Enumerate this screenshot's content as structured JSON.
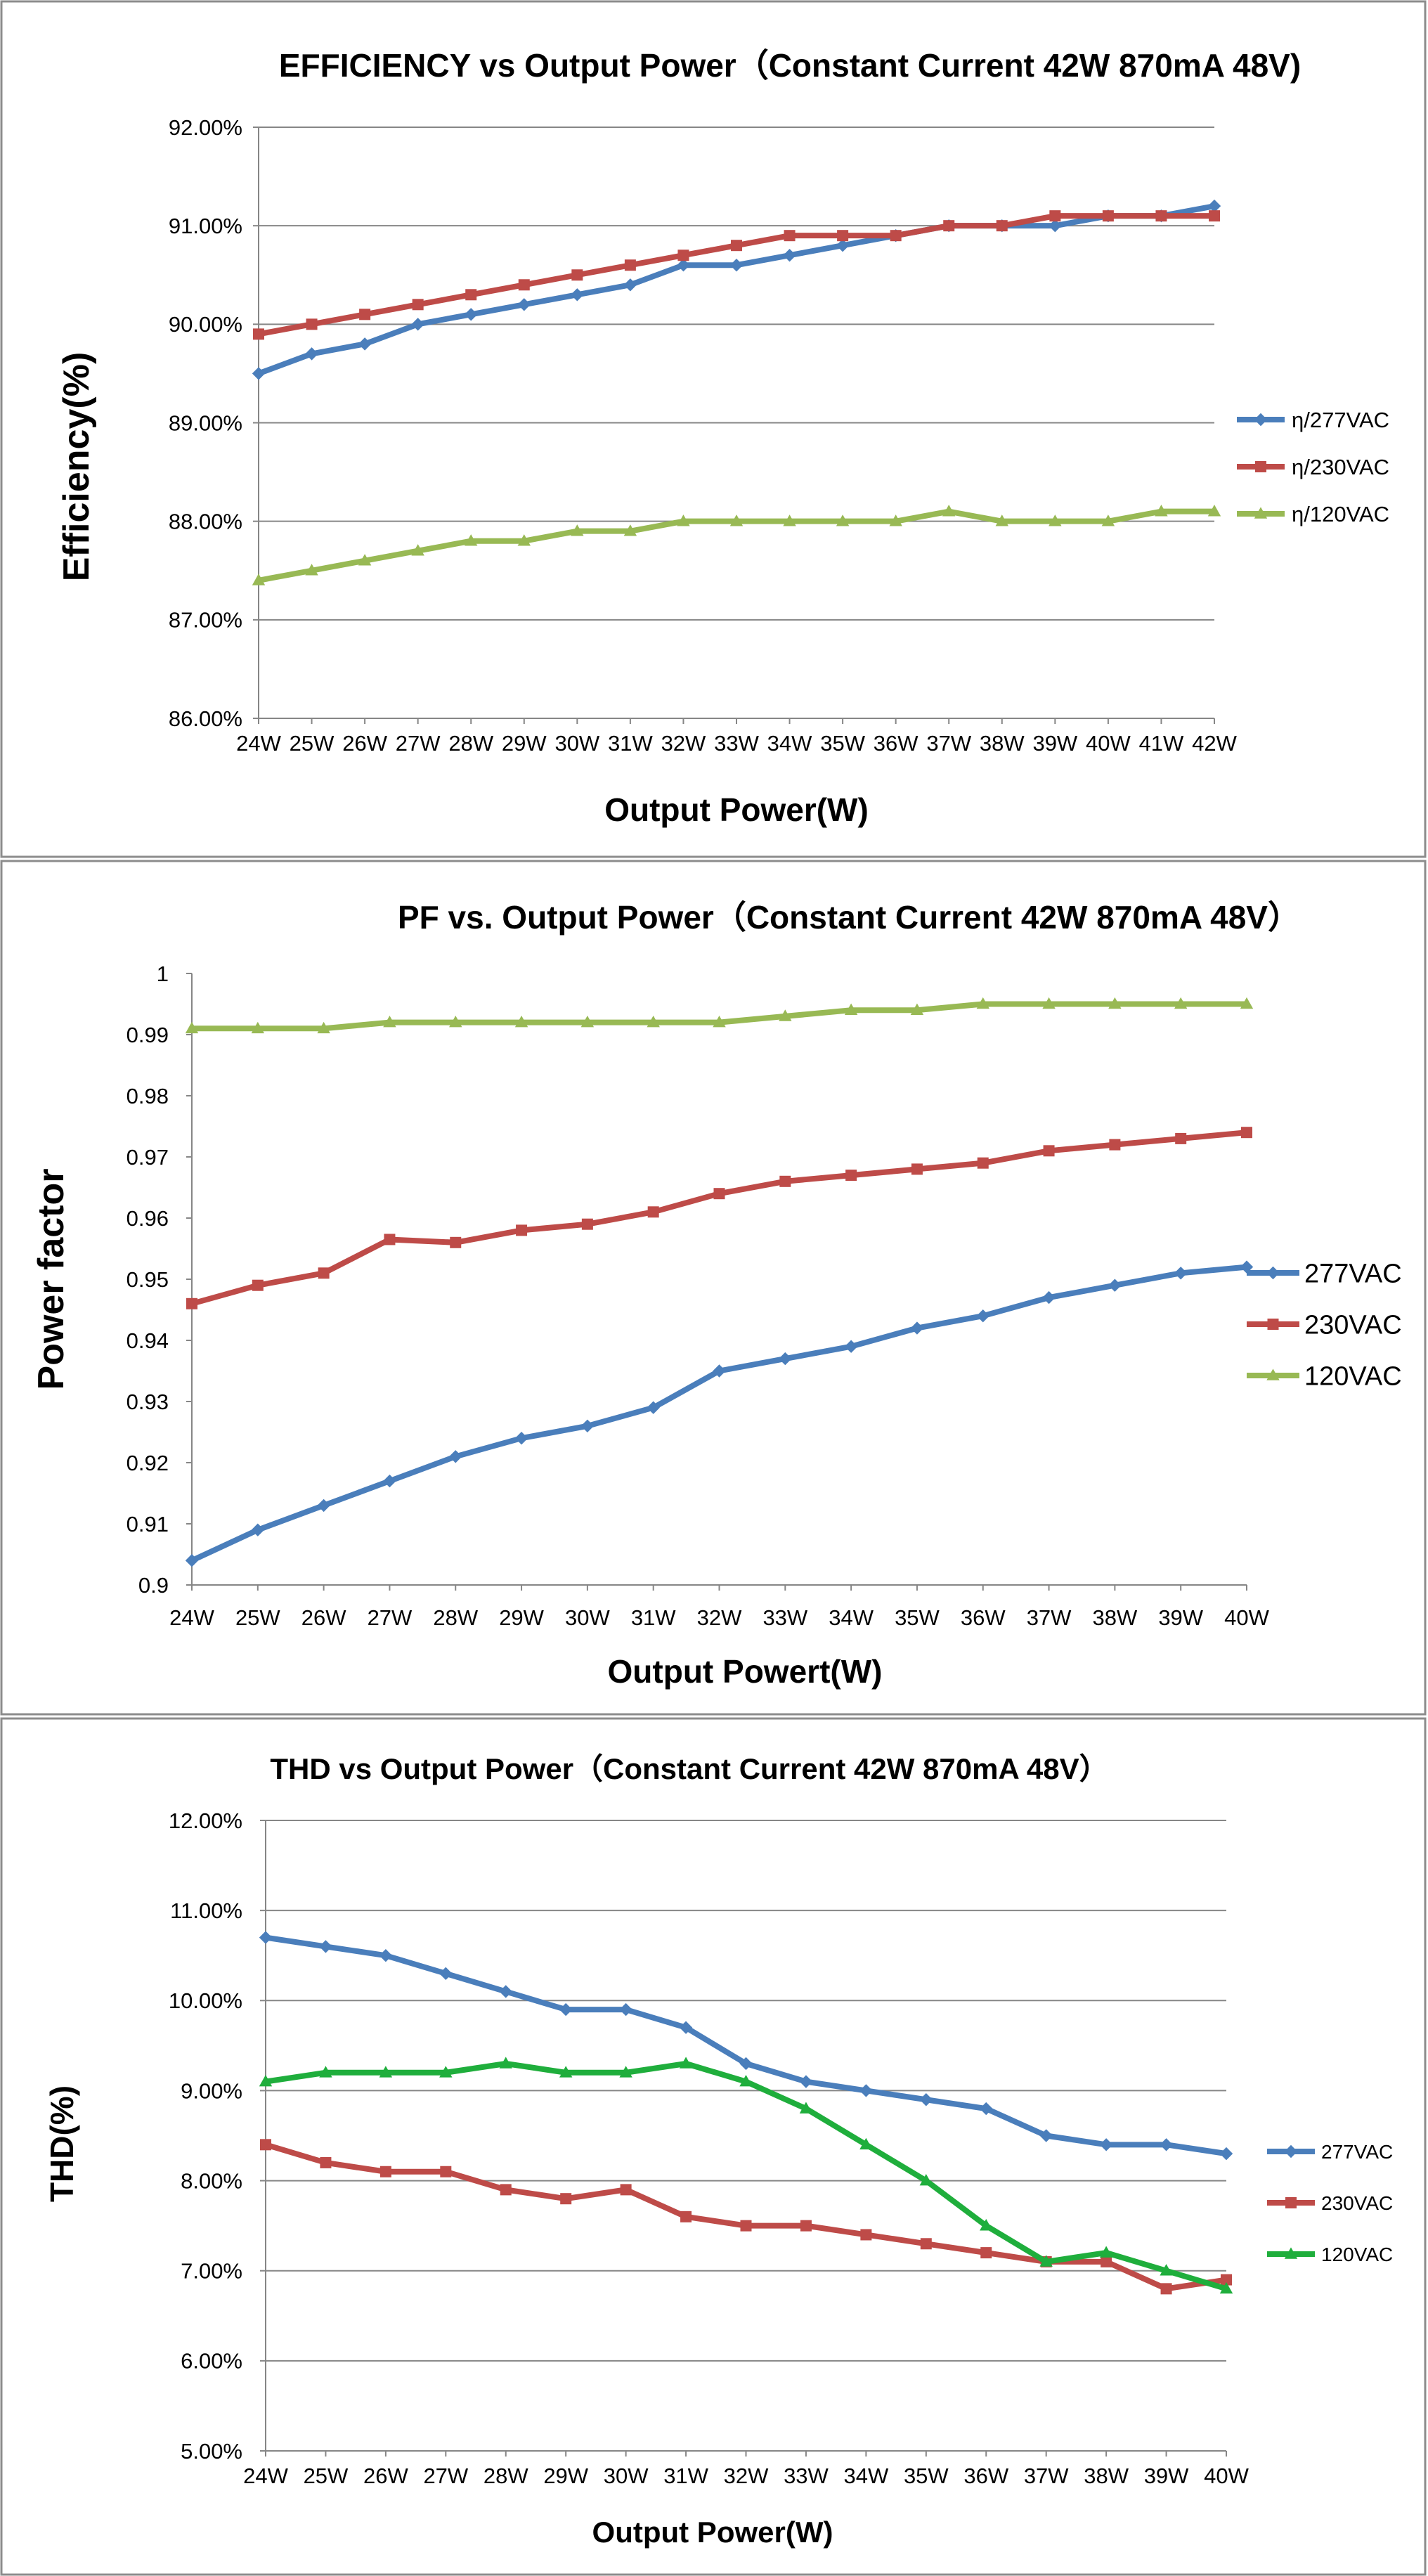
{
  "chart_data": [
    {
      "type": "line",
      "title": "EFFICIENCY vs Output Power（Constant Current 42W 870mA 48V)",
      "xlabel": "Output Power(W)",
      "ylabel": "Efficiency(%)",
      "categories": [
        "24W",
        "25W",
        "26W",
        "27W",
        "28W",
        "29W",
        "30W",
        "31W",
        "32W",
        "33W",
        "34W",
        "35W",
        "36W",
        "37W",
        "38W",
        "39W",
        "40W",
        "41W",
        "42W"
      ],
      "ylim": [
        86.0,
        92.0
      ],
      "yticks": [
        "86.00%",
        "87.00%",
        "88.00%",
        "89.00%",
        "90.00%",
        "91.00%",
        "92.00%"
      ],
      "grid": true,
      "legend_position": "right",
      "series": [
        {
          "name": "η/277VAC",
          "color": "#4a7ebb",
          "marker": "diamond",
          "values": [
            89.5,
            89.7,
            89.8,
            90.0,
            90.1,
            90.2,
            90.3,
            90.4,
            90.6,
            90.6,
            90.7,
            90.8,
            90.9,
            91.0,
            91.0,
            91.0,
            91.1,
            91.1,
            91.2
          ]
        },
        {
          "name": "η/230VAC",
          "color": "#be4b48",
          "marker": "square",
          "values": [
            89.9,
            90.0,
            90.1,
            90.2,
            90.3,
            90.4,
            90.5,
            90.6,
            90.7,
            90.8,
            90.9,
            90.9,
            90.9,
            91.0,
            91.0,
            91.1,
            91.1,
            91.1,
            91.1
          ]
        },
        {
          "name": "η/120VAC",
          "color": "#98b954",
          "marker": "triangle",
          "values": [
            87.4,
            87.5,
            87.6,
            87.7,
            87.8,
            87.8,
            87.9,
            87.9,
            88.0,
            88.0,
            88.0,
            88.0,
            88.0,
            88.1,
            88.0,
            88.0,
            88.0,
            88.1,
            88.1
          ]
        }
      ]
    },
    {
      "type": "line",
      "title": "PF vs. Output Power（Constant Current 42W 870mA 48V）",
      "xlabel": "Output Powert(W)",
      "ylabel": "Power factor",
      "categories": [
        "24W",
        "25W",
        "26W",
        "27W",
        "28W",
        "29W",
        "30W",
        "31W",
        "32W",
        "33W",
        "34W",
        "35W",
        "36W",
        "37W",
        "38W",
        "39W",
        "40W"
      ],
      "ylim": [
        0.9,
        1.0
      ],
      "yticks": [
        "0.9",
        "0.91",
        "0.92",
        "0.93",
        "0.94",
        "0.95",
        "0.96",
        "0.97",
        "0.98",
        "0.99",
        "1"
      ],
      "grid": false,
      "legend_position": "right",
      "series": [
        {
          "name": "277VAC",
          "color": "#4a7ebb",
          "marker": "diamond",
          "values": [
            0.904,
            0.909,
            0.913,
            0.917,
            0.921,
            0.924,
            0.926,
            0.929,
            0.935,
            0.937,
            0.939,
            0.942,
            0.944,
            0.947,
            0.949,
            0.951,
            0.952
          ]
        },
        {
          "name": "230VAC",
          "color": "#be4b48",
          "marker": "square",
          "values": [
            0.946,
            0.949,
            0.951,
            0.9565,
            0.956,
            0.958,
            0.959,
            0.961,
            0.964,
            0.966,
            0.967,
            0.968,
            0.969,
            0.971,
            0.972,
            0.973,
            0.974
          ]
        },
        {
          "name": "120VAC",
          "color": "#98b954",
          "marker": "triangle",
          "values": [
            0.991,
            0.991,
            0.991,
            0.992,
            0.992,
            0.992,
            0.992,
            0.992,
            0.992,
            0.993,
            0.994,
            0.994,
            0.995,
            0.995,
            0.995,
            0.995,
            0.995
          ]
        }
      ]
    },
    {
      "type": "line",
      "title": "THD vs Output Power（Constant Current 42W  870mA 48V）",
      "xlabel": "Output Power(W)",
      "ylabel": "THD(%)",
      "categories": [
        "24W",
        "25W",
        "26W",
        "27W",
        "28W",
        "29W",
        "30W",
        "31W",
        "32W",
        "33W",
        "34W",
        "35W",
        "36W",
        "37W",
        "38W",
        "39W",
        "40W"
      ],
      "ylim": [
        5.0,
        12.0
      ],
      "yticks": [
        "5.00%",
        "6.00%",
        "7.00%",
        "8.00%",
        "9.00%",
        "10.00%",
        "11.00%",
        "12.00%"
      ],
      "grid": true,
      "legend_position": "right",
      "series": [
        {
          "name": "277VAC",
          "color": "#4a7ebb",
          "marker": "diamond",
          "values": [
            10.7,
            10.6,
            10.5,
            10.3,
            10.1,
            9.9,
            9.9,
            9.7,
            9.3,
            9.1,
            9.0,
            8.9,
            8.8,
            8.5,
            8.4,
            8.4,
            8.3
          ]
        },
        {
          "name": "230VAC",
          "color": "#be4b48",
          "marker": "square",
          "values": [
            8.4,
            8.2,
            8.1,
            8.1,
            7.9,
            7.8,
            7.9,
            7.6,
            7.5,
            7.5,
            7.4,
            7.3,
            7.2,
            7.1,
            7.1,
            6.8,
            6.9
          ]
        },
        {
          "name": "120VAC",
          "color": "#1fae3c",
          "marker": "triangle",
          "values": [
            9.1,
            9.2,
            9.2,
            9.2,
            9.3,
            9.2,
            9.2,
            9.3,
            9.1,
            8.8,
            8.4,
            8.0,
            7.5,
            7.1,
            7.2,
            7.0,
            6.8
          ]
        }
      ]
    }
  ]
}
